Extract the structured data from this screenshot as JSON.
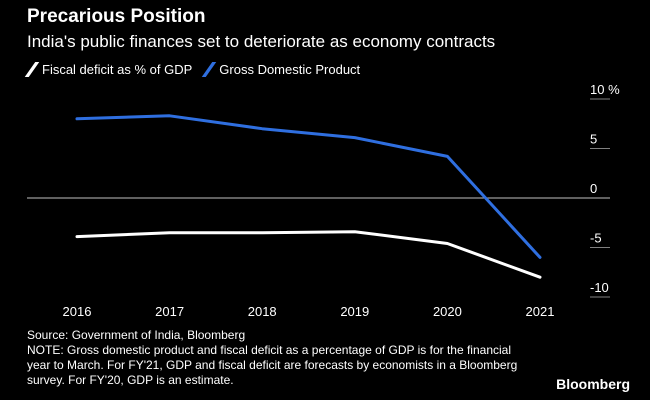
{
  "colors": {
    "background": "#000000",
    "text": "#ffffff",
    "fiscal": "#ffffff",
    "gdp": "#2f6fe0",
    "zero_line": "#bfbfbf",
    "tick": "#808080"
  },
  "chart_data": {
    "type": "line",
    "title": "Precarious Position",
    "subtitle": "India's public finances set to deteriorate as economy contracts",
    "categories": [
      "2016",
      "2017",
      "2018",
      "2019",
      "2020",
      "2021"
    ],
    "series": [
      {
        "name": "Fiscal deficit as % of GDP",
        "values": [
          -3.9,
          -3.5,
          -3.5,
          -3.4,
          -4.6,
          -8.0
        ],
        "color": "#ffffff"
      },
      {
        "name": "Gross Domestic Product",
        "values": [
          8.0,
          8.3,
          7.0,
          6.1,
          4.2,
          -6.0
        ],
        "color": "#2f6fe0"
      }
    ],
    "yticks": [
      10,
      5,
      0,
      -5,
      -10
    ],
    "ytick_labels": [
      "10 %",
      "5",
      "0",
      "-5",
      "-10"
    ],
    "ylim": [
      -12,
      11
    ],
    "xlabel": "",
    "ylabel": "%",
    "legend": "top-left"
  },
  "footer": {
    "source_line": "Source: Government of India, Bloomberg",
    "note_line": "NOTE: Gross domestic product and fiscal deficit as a percentage of GDP is for the financial year to March. For FY'21, GDP and fiscal deficit are forecasts by economists in a Bloomberg survey. For FY'20, GDP is an estimate.",
    "brand": "Bloomberg"
  }
}
